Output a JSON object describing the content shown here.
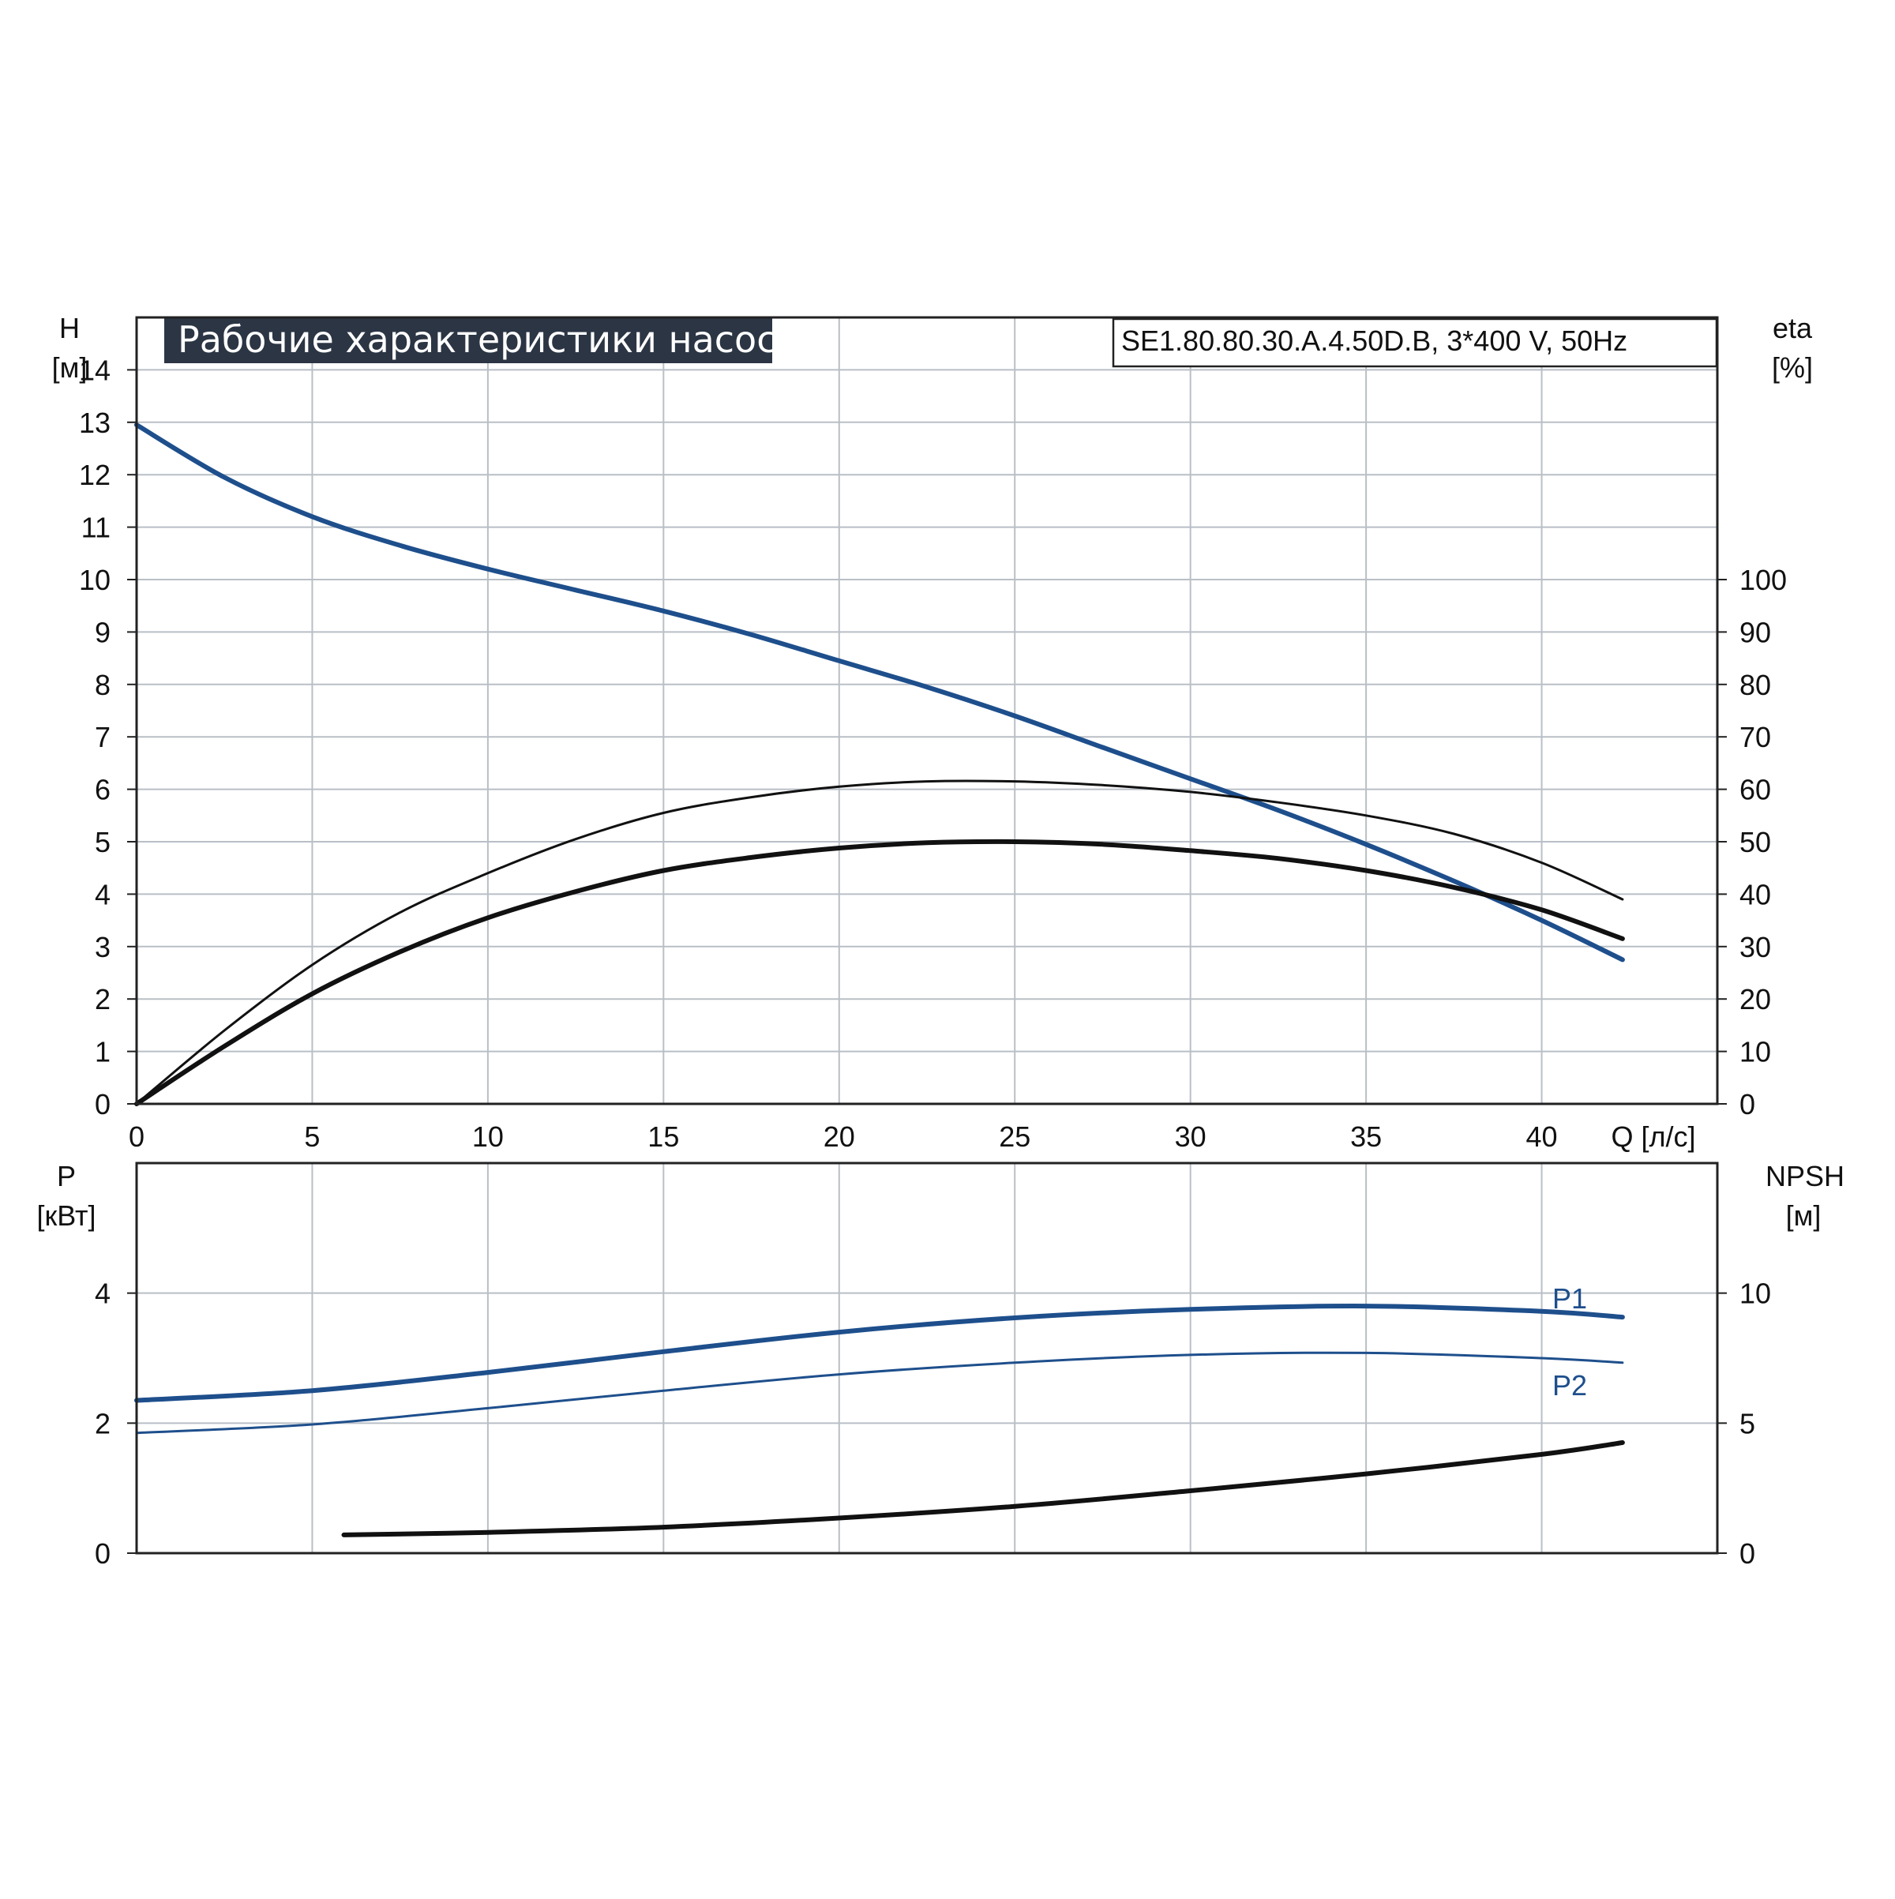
{
  "title": "Рабочие характеристики насоса",
  "model": "SE1.80.80.30.A.4.50D.B, 3*400 V, 50Hz",
  "colors": {
    "blue": "#1e4f8c",
    "black": "#111111",
    "grid": "#b9bfc6",
    "title_bg": "#2b3544"
  },
  "chart_data": [
    {
      "type": "line",
      "name": "upper",
      "x_axis": {
        "label": "Q [л/с]",
        "range": [
          0,
          45
        ],
        "ticks": [
          0,
          5,
          10,
          15,
          20,
          25,
          30,
          35,
          40
        ]
      },
      "y_left": {
        "label_top": "H",
        "label_unit": "[м]",
        "range": [
          0,
          15
        ],
        "ticks": [
          0,
          1,
          2,
          3,
          4,
          5,
          6,
          7,
          8,
          9,
          10,
          11,
          12,
          13,
          14
        ]
      },
      "y_right": {
        "label_top": "eta",
        "label_unit": "[%]",
        "range": [
          0,
          150
        ],
        "ticks": [
          0,
          10,
          20,
          30,
          40,
          50,
          60,
          70,
          80,
          90,
          100
        ]
      },
      "grid": true,
      "series": [
        {
          "axis": "left",
          "color": "#1e4f8c",
          "width": 6,
          "x": [
            0,
            2.5,
            5,
            7.5,
            10,
            12.5,
            15,
            17.5,
            20,
            22.5,
            25,
            27.5,
            30,
            32.5,
            35,
            37.5,
            40,
            42.3
          ],
          "y": [
            12.95,
            11.95,
            11.2,
            10.65,
            10.2,
            9.8,
            9.4,
            8.95,
            8.45,
            7.95,
            7.4,
            6.8,
            6.2,
            5.6,
            4.95,
            4.25,
            3.5,
            2.75
          ]
        },
        {
          "axis": "right",
          "color": "#111111",
          "width": 3,
          "x": [
            0,
            2.5,
            5,
            7.5,
            10,
            12.5,
            15,
            17.5,
            20,
            22.5,
            25,
            27.5,
            30,
            32.5,
            35,
            37.5,
            40,
            42.3
          ],
          "y": [
            0,
            14,
            26.5,
            36.5,
            44,
            50.5,
            55.5,
            58.5,
            60.5,
            61.5,
            61.5,
            60.8,
            59.5,
            57.5,
            55,
            51.5,
            46,
            39
          ]
        },
        {
          "axis": "right",
          "color": "#111111",
          "width": 6,
          "x": [
            0,
            2.5,
            5,
            7.5,
            10,
            12.5,
            15,
            17.5,
            20,
            22.5,
            25,
            27.5,
            30,
            32.5,
            35,
            37.5,
            40,
            42.3
          ],
          "y": [
            0,
            11,
            21,
            29,
            35.5,
            40.5,
            44.5,
            47,
            48.8,
            49.8,
            50,
            49.5,
            48.3,
            46.8,
            44.5,
            41.3,
            37,
            31.5
          ]
        }
      ]
    },
    {
      "type": "line",
      "name": "lower",
      "y_left": {
        "label_top": "P",
        "label_unit": "[кВт]",
        "range": [
          0,
          6
        ],
        "ticks": [
          0,
          2,
          4
        ]
      },
      "y_right": {
        "label_top": "NPSH",
        "label_unit": "[м]",
        "range": [
          0,
          15
        ],
        "ticks": [
          0,
          5,
          10
        ]
      },
      "grid": true,
      "series": [
        {
          "name": "P1",
          "axis": "left",
          "color": "#1e4f8c",
          "width": 6,
          "x": [
            0,
            5,
            10,
            15,
            20,
            25,
            30,
            35,
            40,
            42.3
          ],
          "y": [
            2.35,
            2.5,
            2.78,
            3.1,
            3.4,
            3.62,
            3.75,
            3.8,
            3.72,
            3.63
          ]
        },
        {
          "name": "P2",
          "axis": "left",
          "color": "#1e4f8c",
          "width": 3,
          "x": [
            0,
            5,
            10,
            15,
            20,
            25,
            30,
            35,
            40,
            42.3
          ],
          "y": [
            1.85,
            1.98,
            2.23,
            2.5,
            2.75,
            2.93,
            3.05,
            3.08,
            3.0,
            2.93
          ]
        },
        {
          "axis": "right",
          "color": "#111111",
          "width": 6,
          "x": [
            5.9,
            10,
            15,
            20,
            25,
            30,
            35,
            40,
            42.3
          ],
          "y": [
            0.7,
            0.8,
            1.0,
            1.35,
            1.8,
            2.4,
            3.05,
            3.8,
            4.25
          ]
        }
      ]
    }
  ]
}
